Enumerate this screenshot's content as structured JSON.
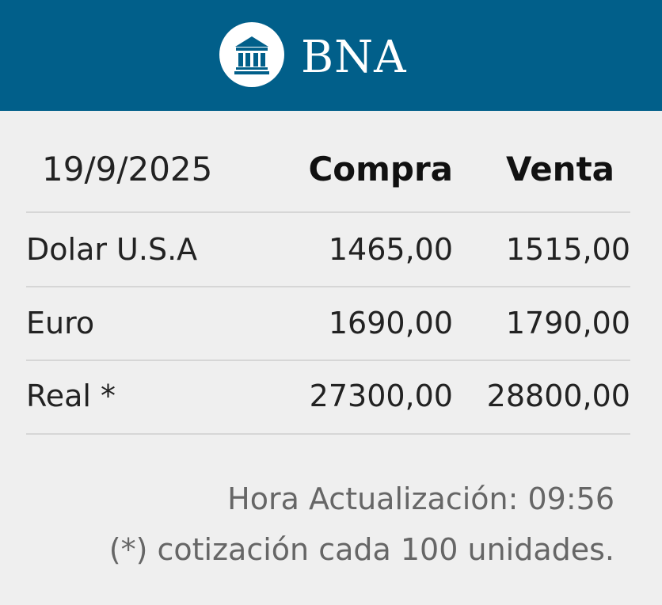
{
  "colors": {
    "brand": "#015f8a",
    "background": "#efefef"
  },
  "header": {
    "logo_icon": "bank-building-icon",
    "brand": "BNA"
  },
  "table": {
    "date": "19/9/2025",
    "columns": [
      "Compra",
      "Venta"
    ],
    "rows": [
      {
        "name": "Dolar U.S.A",
        "buy": "1465,00",
        "sell": "1515,00"
      },
      {
        "name": "Euro",
        "buy": "1690,00",
        "sell": "1790,00"
      },
      {
        "name": "Real *",
        "buy": "27300,00",
        "sell": "28800,00"
      }
    ]
  },
  "footer": {
    "updated": "Hora Actualización: 09:56",
    "note": "(*) cotización cada 100 unidades."
  }
}
